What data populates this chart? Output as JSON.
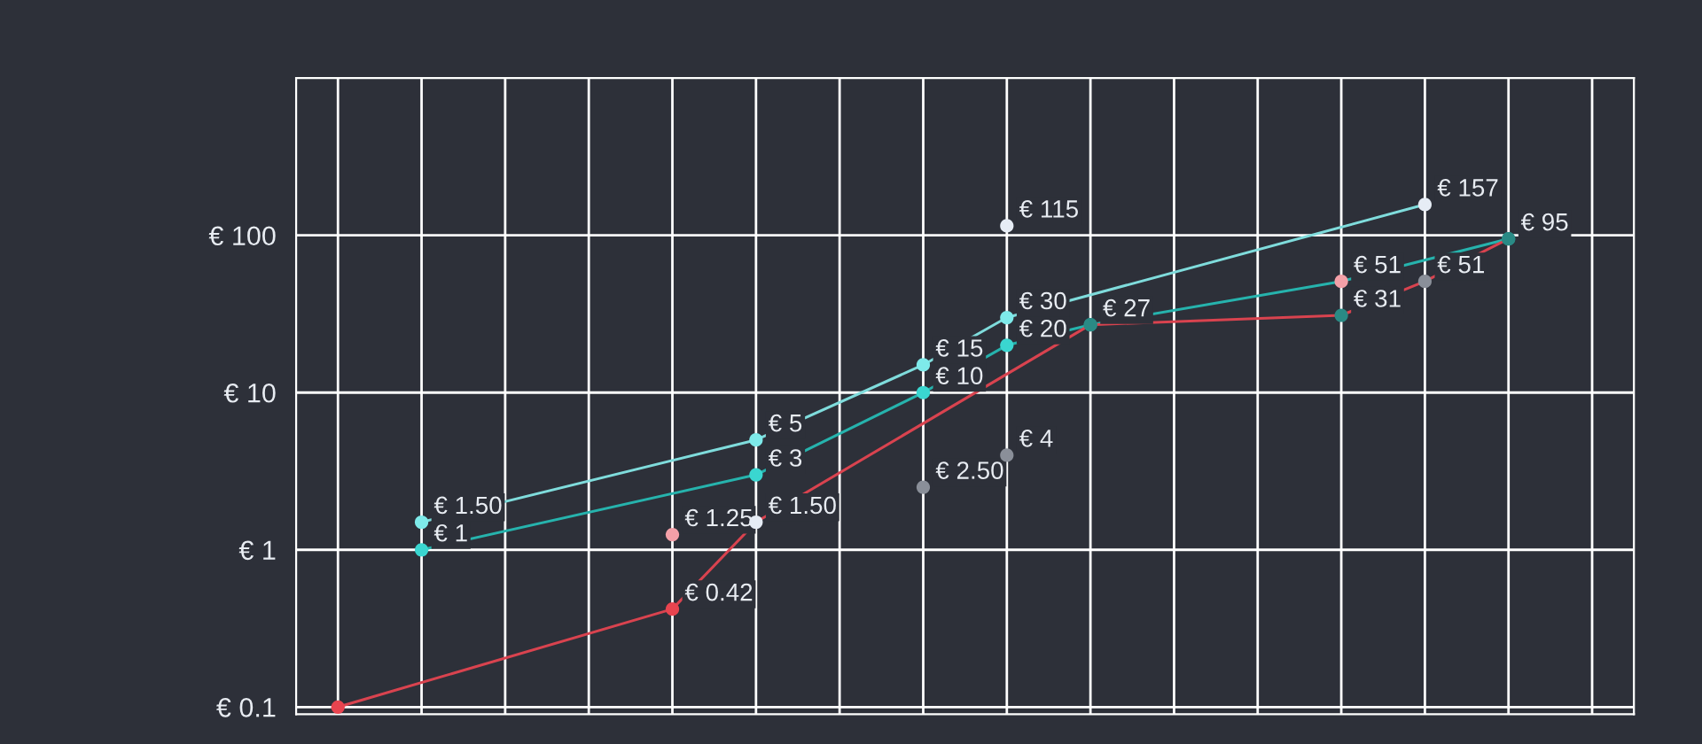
{
  "chart_data": {
    "type": "line",
    "log": true,
    "grid": true,
    "marker": "circle",
    "line_style": "solid",
    "tick_labels": "y",
    "categories": [
      null,
      null,
      null,
      null,
      null,
      null,
      null,
      null,
      null,
      null,
      null,
      null,
      null,
      null,
      null,
      null
    ],
    "ylim": [
      0.09,
      1000
    ],
    "yticks": [
      {
        "value": 0.1,
        "label": "€ 0.1"
      },
      {
        "value": 1,
        "label": "€ 1"
      },
      {
        "value": 10,
        "label": "€ 10"
      },
      {
        "value": 100,
        "label": "€ 100"
      }
    ],
    "series": [
      {
        "color": "#7fdcdc",
        "values": [
          null,
          1.5,
          null,
          null,
          null,
          5,
          null,
          15,
          30,
          null,
          null,
          null,
          null,
          157,
          null,
          null
        ],
        "colors": [
          null,
          "#7eeaea",
          null,
          null,
          null,
          "#7eeaea",
          null,
          "#7eeaea",
          "#7eeaea",
          null,
          null,
          null,
          null,
          "#e6ecf5",
          null,
          null
        ],
        "value_labels": [
          null,
          "€ 1.50",
          null,
          null,
          null,
          "€ 5",
          null,
          "€ 15",
          "€ 30",
          null,
          null,
          null,
          null,
          "€ 157",
          null,
          null
        ]
      },
      {
        "color": "#26b3ad",
        "values": [
          null,
          1,
          null,
          null,
          null,
          3,
          null,
          10,
          20,
          27,
          null,
          null,
          51,
          null,
          95,
          null
        ],
        "colors": [
          null,
          "#3ad6d0",
          null,
          null,
          null,
          "#3ad6d0",
          null,
          "#3ad6d0",
          "#3ad6d0",
          "#2a8a85",
          null,
          null,
          "#f4a0a8",
          null,
          "#2a8a85",
          null
        ],
        "value_labels": [
          null,
          "€ 1",
          null,
          null,
          null,
          "€ 3",
          null,
          "€ 10",
          "€ 20",
          "€ 27",
          null,
          null,
          "€ 51",
          null,
          "€ 95",
          null
        ]
      },
      {
        "color": "#d9434f",
        "values": [
          0.1,
          null,
          null,
          null,
          0.42,
          1.5,
          null,
          null,
          null,
          27,
          null,
          null,
          31,
          51,
          95,
          null
        ],
        "colors": [
          "#e8444f",
          null,
          null,
          null,
          "#e8444f",
          "#e6ecf5",
          null,
          null,
          null,
          "#2a8a85",
          null,
          null,
          "#2a8a85",
          "#8a8f99",
          "#2a8a85",
          null
        ],
        "value_labels": [
          null,
          null,
          null,
          null,
          "€ 0.42",
          "€ 1.50",
          null,
          null,
          null,
          null,
          null,
          null,
          "€ 31",
          "€ 51",
          null,
          null
        ]
      },
      {
        "type": "scatter",
        "values": [
          null,
          null,
          null,
          null,
          1.25,
          null,
          null,
          2.5,
          4,
          null,
          null,
          null,
          null,
          null,
          null,
          null
        ],
        "colors": [
          null,
          null,
          null,
          null,
          "#f4a0a8",
          null,
          null,
          "#8a8f99",
          "#8a8f99",
          null,
          null,
          null,
          null,
          null,
          null,
          null
        ],
        "value_labels": [
          null,
          null,
          null,
          null,
          "€ 1.25",
          null,
          null,
          "€ 2.50",
          "€ 4",
          null,
          null,
          null,
          null,
          null,
          null,
          null
        ]
      },
      {
        "type": "scatter",
        "color": "#e6ecf5",
        "values": [
          null,
          null,
          null,
          null,
          null,
          null,
          null,
          null,
          115,
          null,
          null,
          null,
          null,
          null,
          null,
          null
        ],
        "value_labels": [
          null,
          null,
          null,
          null,
          null,
          null,
          null,
          null,
          "€ 115",
          null,
          null,
          null,
          null,
          null,
          null,
          null
        ]
      }
    ]
  }
}
